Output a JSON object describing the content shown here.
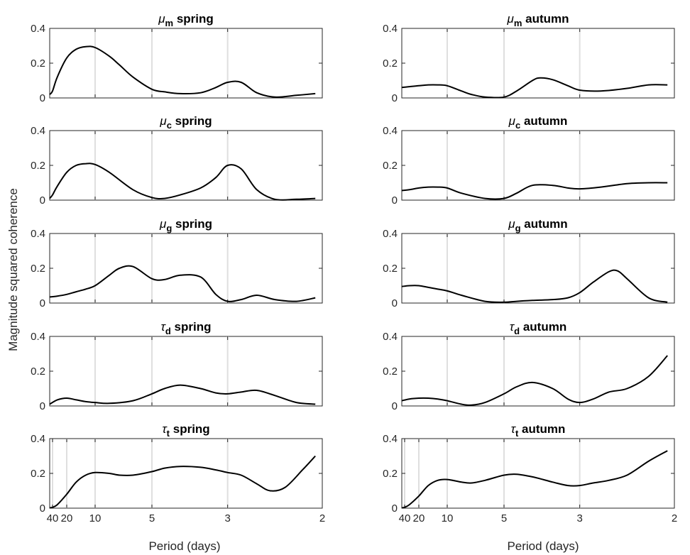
{
  "figure": {
    "ylabel": "Magnitude squared coherence",
    "xlabel": "Period (days)"
  },
  "chart_data": [
    {
      "type": "line",
      "title": {
        "sym": "μ",
        "sub": "m",
        "season": "spring"
      },
      "xlabel": "",
      "ylim": [
        0,
        0.4
      ],
      "yticks": [
        0,
        0.2,
        0.4
      ],
      "ytick_labels": [
        "0",
        "0.2",
        "0.4"
      ],
      "xticks": [
        10,
        5,
        3,
        2
      ],
      "xtick_labels": [],
      "grid": true,
      "x": [
        50,
        40,
        30,
        20,
        15,
        12,
        10,
        8,
        7,
        6,
        5,
        4.5,
        4,
        3.5,
        3.2,
        3,
        2.8,
        2.6,
        2.4,
        2.2,
        2.05
      ],
      "y": [
        0.02,
        0.04,
        0.12,
        0.23,
        0.28,
        0.295,
        0.29,
        0.24,
        0.19,
        0.12,
        0.05,
        0.035,
        0.025,
        0.03,
        0.06,
        0.09,
        0.09,
        0.03,
        0.005,
        0.015,
        0.025
      ]
    },
    {
      "type": "line",
      "title": {
        "sym": "μ",
        "sub": "m",
        "season": "autumn"
      },
      "xlabel": "",
      "ylim": [
        0,
        0.4
      ],
      "yticks": [
        0,
        0.2,
        0.4
      ],
      "ytick_labels": [
        "0",
        "0.2",
        "0.4"
      ],
      "xticks": [
        10,
        5,
        3,
        2
      ],
      "xtick_labels": [],
      "grid": true,
      "x": [
        50,
        30,
        20,
        15,
        12,
        10,
        8,
        7,
        6,
        5,
        4.5,
        4,
        3.8,
        3.5,
        3.2,
        3,
        2.7,
        2.4,
        2.2,
        2.05
      ],
      "y": [
        0.06,
        0.065,
        0.07,
        0.075,
        0.075,
        0.07,
        0.04,
        0.02,
        0.005,
        0.005,
        0.04,
        0.1,
        0.115,
        0.105,
        0.07,
        0.045,
        0.04,
        0.055,
        0.075,
        0.075
      ]
    },
    {
      "type": "line",
      "title": {
        "sym": "μ",
        "sub": "c",
        "season": "spring"
      },
      "xlabel": "",
      "ylim": [
        0,
        0.4
      ],
      "yticks": [
        0,
        0.2,
        0.4
      ],
      "ytick_labels": [
        "0",
        "0.2",
        "0.4"
      ],
      "xticks": [
        10,
        5,
        3,
        2
      ],
      "xtick_labels": [],
      "grid": true,
      "x": [
        50,
        40,
        30,
        20,
        15,
        12,
        10,
        8,
        6,
        5,
        4.5,
        4,
        3.5,
        3.2,
        3,
        2.8,
        2.6,
        2.4,
        2.2,
        2.05
      ],
      "y": [
        0.01,
        0.03,
        0.08,
        0.16,
        0.2,
        0.21,
        0.205,
        0.16,
        0.06,
        0.015,
        0.01,
        0.03,
        0.07,
        0.13,
        0.2,
        0.18,
        0.06,
        0.005,
        0.005,
        0.01
      ]
    },
    {
      "type": "line",
      "title": {
        "sym": "μ",
        "sub": "c",
        "season": "autumn"
      },
      "xlabel": "",
      "ylim": [
        0,
        0.4
      ],
      "yticks": [
        0,
        0.2,
        0.4
      ],
      "ytick_labels": [
        "0",
        "0.2",
        "0.4"
      ],
      "xticks": [
        10,
        5,
        3,
        2
      ],
      "xtick_labels": [],
      "grid": true,
      "x": [
        50,
        30,
        20,
        15,
        12,
        10,
        8,
        6,
        5,
        4.5,
        4,
        3.5,
        3.2,
        3,
        2.7,
        2.4,
        2.2,
        2.05
      ],
      "y": [
        0.055,
        0.06,
        0.07,
        0.075,
        0.075,
        0.07,
        0.04,
        0.01,
        0.01,
        0.04,
        0.085,
        0.085,
        0.07,
        0.065,
        0.075,
        0.095,
        0.1,
        0.1
      ]
    },
    {
      "type": "line",
      "title": {
        "sym": "μ",
        "sub": "g",
        "season": "spring"
      },
      "xlabel": "",
      "ylim": [
        0,
        0.4
      ],
      "yticks": [
        0,
        0.2,
        0.4
      ],
      "ytick_labels": [
        "0",
        "0.2",
        "0.4"
      ],
      "xticks": [
        10,
        5,
        3,
        2
      ],
      "xtick_labels": [],
      "grid": true,
      "x": [
        50,
        30,
        20,
        15,
        12,
        10,
        8,
        7,
        6,
        5,
        4.5,
        4,
        3.5,
        3.2,
        3,
        2.8,
        2.6,
        2.4,
        2.2,
        2.05
      ],
      "y": [
        0.035,
        0.04,
        0.05,
        0.065,
        0.08,
        0.1,
        0.16,
        0.2,
        0.21,
        0.14,
        0.135,
        0.16,
        0.15,
        0.05,
        0.01,
        0.02,
        0.045,
        0.02,
        0.01,
        0.03
      ]
    },
    {
      "type": "line",
      "title": {
        "sym": "μ",
        "sub": "g",
        "season": "autumn"
      },
      "xlabel": "",
      "ylim": [
        0,
        0.4
      ],
      "yticks": [
        0,
        0.2,
        0.4
      ],
      "ytick_labels": [
        "0",
        "0.2",
        "0.4"
      ],
      "xticks": [
        10,
        5,
        3,
        2
      ],
      "xtick_labels": [],
      "grid": true,
      "x": [
        50,
        30,
        20,
        15,
        12,
        10,
        8,
        6,
        5,
        4.5,
        4,
        3.5,
        3.2,
        3,
        2.8,
        2.6,
        2.5,
        2.4,
        2.2,
        2.05
      ],
      "y": [
        0.095,
        0.1,
        0.1,
        0.09,
        0.08,
        0.07,
        0.045,
        0.01,
        0.005,
        0.01,
        0.015,
        0.02,
        0.03,
        0.06,
        0.12,
        0.18,
        0.185,
        0.14,
        0.03,
        0.005
      ]
    },
    {
      "type": "line",
      "title": {
        "sym": "τ",
        "sub": "d",
        "season": "spring"
      },
      "xlabel": "",
      "ylim": [
        0,
        0.4
      ],
      "yticks": [
        0,
        0.2,
        0.4
      ],
      "ytick_labels": [
        "0",
        "0.2",
        "0.4"
      ],
      "xticks": [
        10,
        5,
        3,
        2
      ],
      "xtick_labels": [],
      "grid": true,
      "x": [
        50,
        30,
        20,
        15,
        12,
        10,
        8,
        6,
        5,
        4.5,
        4,
        3.5,
        3.2,
        3,
        2.8,
        2.6,
        2.4,
        2.2,
        2.05
      ],
      "y": [
        0.01,
        0.035,
        0.045,
        0.035,
        0.025,
        0.02,
        0.015,
        0.03,
        0.07,
        0.1,
        0.12,
        0.1,
        0.075,
        0.07,
        0.08,
        0.09,
        0.06,
        0.02,
        0.01
      ]
    },
    {
      "type": "line",
      "title": {
        "sym": "τ",
        "sub": "d",
        "season": "autumn"
      },
      "xlabel": "",
      "ylim": [
        0,
        0.4
      ],
      "yticks": [
        0,
        0.2,
        0.4
      ],
      "ytick_labels": [
        "0",
        "0.2",
        "0.4"
      ],
      "xticks": [
        10,
        5,
        3,
        2
      ],
      "xtick_labels": [],
      "grid": true,
      "x": [
        50,
        30,
        20,
        15,
        12,
        10,
        8,
        7,
        6,
        5,
        4.5,
        4,
        3.5,
        3.2,
        3,
        2.8,
        2.6,
        2.4,
        2.2,
        2.05
      ],
      "y": [
        0.03,
        0.04,
        0.045,
        0.045,
        0.04,
        0.03,
        0.01,
        0.005,
        0.02,
        0.07,
        0.11,
        0.135,
        0.1,
        0.04,
        0.02,
        0.04,
        0.08,
        0.1,
        0.17,
        0.29
      ]
    },
    {
      "type": "line",
      "title": {
        "sym": "τ",
        "sub": "t",
        "season": "spring"
      },
      "xlabel": "Period (days)",
      "ylim": [
        0,
        0.4
      ],
      "yticks": [
        0,
        0.2,
        0.4
      ],
      "ytick_labels": [
        "0",
        "0.2",
        "0.4"
      ],
      "xticks": [
        40,
        20,
        10,
        5,
        3,
        2
      ],
      "xtick_labels": [
        "40",
        "20",
        "10",
        "5",
        "3",
        "2"
      ],
      "grid": true,
      "x": [
        50,
        40,
        30,
        20,
        15,
        12,
        10,
        8,
        7,
        6,
        5,
        4.5,
        4,
        3.5,
        3.2,
        3,
        2.8,
        2.6,
        2.45,
        2.3,
        2.15,
        2.05
      ],
      "y": [
        0.002,
        0.005,
        0.02,
        0.08,
        0.15,
        0.19,
        0.205,
        0.2,
        0.19,
        0.19,
        0.21,
        0.23,
        0.24,
        0.235,
        0.22,
        0.205,
        0.19,
        0.14,
        0.1,
        0.12,
        0.22,
        0.3
      ]
    },
    {
      "type": "line",
      "title": {
        "sym": "τ",
        "sub": "t",
        "season": "autumn"
      },
      "xlabel": "Period (days)",
      "ylim": [
        0,
        0.4
      ],
      "yticks": [
        0,
        0.2,
        0.4
      ],
      "ytick_labels": [
        "0",
        "0.2",
        "0.4"
      ],
      "xticks": [
        40,
        20,
        10,
        5,
        3,
        2
      ],
      "xtick_labels": [
        "40",
        "20",
        "10",
        "5",
        "3",
        "2"
      ],
      "grid": true,
      "x": [
        50,
        40,
        30,
        20,
        15,
        12,
        10,
        8,
        7,
        6,
        5,
        4.5,
        4,
        3.5,
        3.2,
        3,
        2.8,
        2.6,
        2.4,
        2.2,
        2.05
      ],
      "y": [
        0.002,
        0.005,
        0.02,
        0.07,
        0.13,
        0.16,
        0.165,
        0.15,
        0.145,
        0.16,
        0.19,
        0.195,
        0.18,
        0.15,
        0.13,
        0.13,
        0.145,
        0.16,
        0.19,
        0.27,
        0.33
      ]
    }
  ]
}
